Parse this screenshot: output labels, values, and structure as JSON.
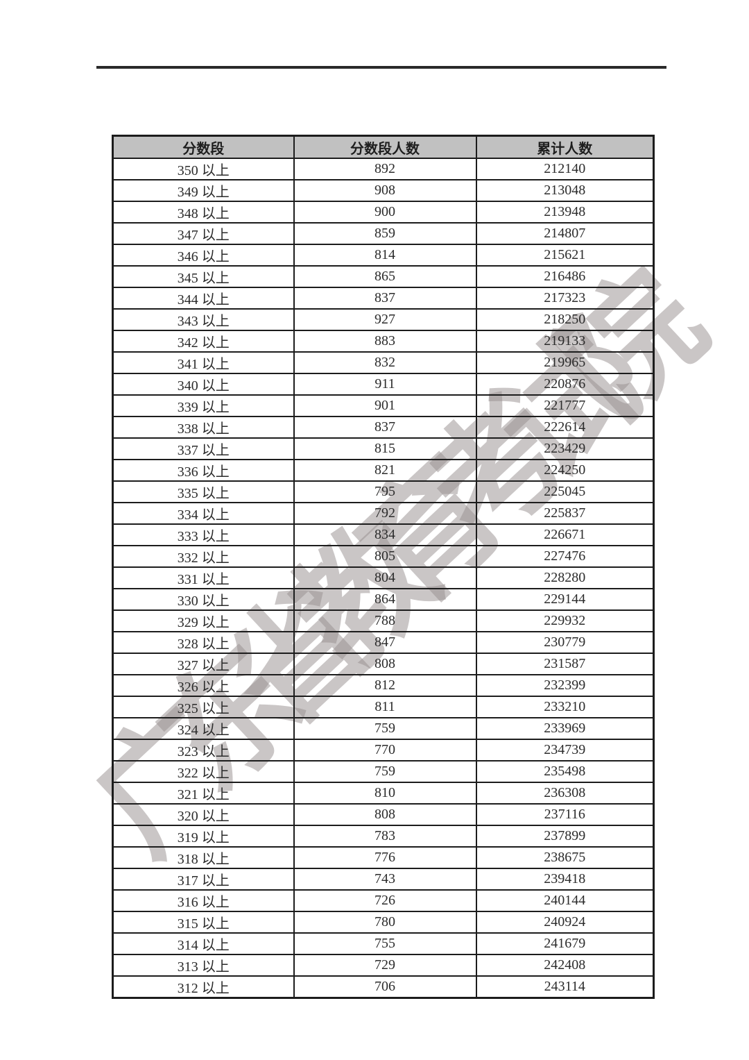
{
  "watermark": {
    "text": "广东省教育考试院",
    "color": "#cfc8c8"
  },
  "colors": {
    "header_bg": "#c1c1c1",
    "border": "#1c1c1c",
    "top_rule": "#2a2a2a"
  },
  "table": {
    "headers": [
      "分数段",
      "分数段人数",
      "累计人数"
    ],
    "rows": [
      [
        "350 以上",
        "892",
        "212140"
      ],
      [
        "349 以上",
        "908",
        "213048"
      ],
      [
        "348 以上",
        "900",
        "213948"
      ],
      [
        "347 以上",
        "859",
        "214807"
      ],
      [
        "346 以上",
        "814",
        "215621"
      ],
      [
        "345 以上",
        "865",
        "216486"
      ],
      [
        "344 以上",
        "837",
        "217323"
      ],
      [
        "343 以上",
        "927",
        "218250"
      ],
      [
        "342 以上",
        "883",
        "219133"
      ],
      [
        "341 以上",
        "832",
        "219965"
      ],
      [
        "340 以上",
        "911",
        "220876"
      ],
      [
        "339 以上",
        "901",
        "221777"
      ],
      [
        "338 以上",
        "837",
        "222614"
      ],
      [
        "337 以上",
        "815",
        "223429"
      ],
      [
        "336 以上",
        "821",
        "224250"
      ],
      [
        "335 以上",
        "795",
        "225045"
      ],
      [
        "334 以上",
        "792",
        "225837"
      ],
      [
        "333 以上",
        "834",
        "226671"
      ],
      [
        "332 以上",
        "805",
        "227476"
      ],
      [
        "331 以上",
        "804",
        "228280"
      ],
      [
        "330 以上",
        "864",
        "229144"
      ],
      [
        "329 以上",
        "788",
        "229932"
      ],
      [
        "328 以上",
        "847",
        "230779"
      ],
      [
        "327 以上",
        "808",
        "231587"
      ],
      [
        "326 以上",
        "812",
        "232399"
      ],
      [
        "325 以上",
        "811",
        "233210"
      ],
      [
        "324 以上",
        "759",
        "233969"
      ],
      [
        "323 以上",
        "770",
        "234739"
      ],
      [
        "322 以上",
        "759",
        "235498"
      ],
      [
        "321 以上",
        "810",
        "236308"
      ],
      [
        "320 以上",
        "808",
        "237116"
      ],
      [
        "319 以上",
        "783",
        "237899"
      ],
      [
        "318 以上",
        "776",
        "238675"
      ],
      [
        "317 以上",
        "743",
        "239418"
      ],
      [
        "316 以上",
        "726",
        "240144"
      ],
      [
        "315 以上",
        "780",
        "240924"
      ],
      [
        "314 以上",
        "755",
        "241679"
      ],
      [
        "313 以上",
        "729",
        "242408"
      ],
      [
        "312 以上",
        "706",
        "243114"
      ]
    ]
  }
}
